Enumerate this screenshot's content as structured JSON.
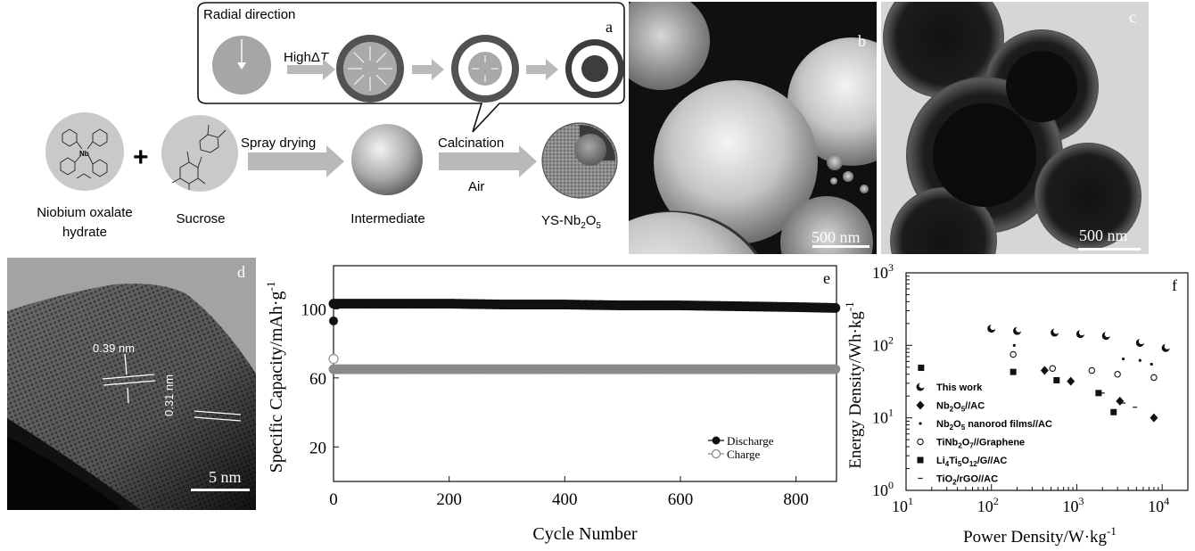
{
  "panel_a": {
    "letter": "a",
    "callout_title": "Radial direction",
    "high_dt_prefix": "High",
    "high_dt_delta": "Δ",
    "high_dt_t": "T",
    "spray_drying": "Spray drying",
    "calcination": "Calcination",
    "air": "Air",
    "plus": "+",
    "labels": {
      "niobium_line1": "Niobium oxalate",
      "niobium_line2": "hydrate",
      "sucrose": "Sucrose",
      "intermediate": "Intermediate",
      "ys_prefix": "YS-Nb",
      "ys_sub1": "2",
      "ys_mid": "O",
      "ys_sub2": "5"
    },
    "nb_atom": "Nb"
  },
  "panel_b": {
    "letter": "b",
    "scale": "500 nm"
  },
  "panel_c": {
    "letter": "c",
    "scale": "500 nm"
  },
  "panel_d": {
    "letter": "d",
    "spacing1": "0.39 nm",
    "spacing2": "0.31 nm",
    "scale": "5 nm"
  },
  "chart_data": [
    {
      "id": "e",
      "letter": "e",
      "type": "scatter",
      "xlabel": "Cycle Number",
      "ylabel": "Specific Capacity/mAh·g",
      "ylabel_sup": "-1",
      "xlim": [
        0,
        870
      ],
      "ylim": [
        0,
        125
      ],
      "xticks": [
        0,
        200,
        400,
        600,
        800
      ],
      "yticks": [
        20,
        60,
        100
      ],
      "legend_position": "bottom-right",
      "series": [
        {
          "name": "Discharge",
          "color": "#111111",
          "first_value": 93,
          "x": [
            0,
            100,
            200,
            300,
            400,
            500,
            600,
            700,
            800,
            870
          ],
          "values": [
            103,
            103,
            103,
            102.5,
            102.5,
            102,
            102,
            101.5,
            101,
            100.5
          ]
        },
        {
          "name": "Charge",
          "color": "#8a8a8a",
          "first_value": 71,
          "x": [
            0,
            100,
            200,
            300,
            400,
            500,
            600,
            700,
            800,
            870
          ],
          "values": [
            65,
            65,
            65,
            65,
            65,
            65,
            65,
            65,
            65,
            65
          ]
        }
      ]
    },
    {
      "id": "f",
      "letter": "f",
      "type": "scatter",
      "xlabel": "Power Density/W·kg",
      "xlabel_sup": "-1",
      "ylabel": "Energy Density/Wh·kg",
      "ylabel_sup": "-1",
      "x_scale": "log",
      "y_scale": "log",
      "xlim": [
        10,
        20000
      ],
      "ylim": [
        1,
        1000
      ],
      "xtick_labels": [
        "10",
        "10",
        "10",
        "10"
      ],
      "xtick_sups": [
        "1",
        "2",
        "3",
        "4"
      ],
      "ytick_labels": [
        "10",
        "10",
        "10",
        "10"
      ],
      "ytick_sups": [
        "0",
        "1",
        "2",
        "3"
      ],
      "legend_position": "bottom-left",
      "series": [
        {
          "name": "This work",
          "marker": "crescent",
          "x": [
            100,
            200,
            550,
            1100,
            2200,
            5500,
            11000
          ],
          "values": [
            170,
            158,
            150,
            143,
            135,
            108,
            92
          ]
        },
        {
          "name": "Nb2O5//AC",
          "name_parts": [
            "Nb",
            "2",
            "O",
            "5",
            "//AC"
          ],
          "marker": "diamond",
          "x": [
            420,
            850,
            3200,
            8000
          ],
          "values": [
            45,
            32,
            17,
            10
          ]
        },
        {
          "name": "Nb2O5 nanorod films//AC",
          "name_parts": [
            "Nb",
            "2",
            "O",
            "5",
            " nanorod films//AC"
          ],
          "marker": "dot",
          "x": [
            185,
            3500,
            5500,
            7500
          ],
          "values": [
            100,
            65,
            62,
            55
          ]
        },
        {
          "name": "TiNb2O7//Graphene",
          "name_parts": [
            "TiNb",
            "2",
            "O",
            "7",
            "//Graphene"
          ],
          "marker": "ring",
          "x": [
            180,
            520,
            1500,
            3000,
            8000
          ],
          "values": [
            75,
            48,
            45,
            40,
            36
          ]
        },
        {
          "name": "Li4Ti5O12/G//AC",
          "name_parts": [
            "Li",
            "4",
            "Ti",
            "5",
            "O",
            "12",
            "/G//AC"
          ],
          "marker": "square",
          "x": [
            15,
            180,
            580,
            1800,
            2700
          ],
          "values": [
            49,
            43,
            33,
            22,
            12
          ]
        },
        {
          "name": "TiO2/rGO//AC",
          "name_parts": [
            "TiO",
            "2",
            "/rGO//AC"
          ],
          "marker": "tick",
          "x": [
            2000,
            3500,
            4800
          ],
          "values": [
            22,
            16,
            14
          ]
        }
      ]
    }
  ]
}
